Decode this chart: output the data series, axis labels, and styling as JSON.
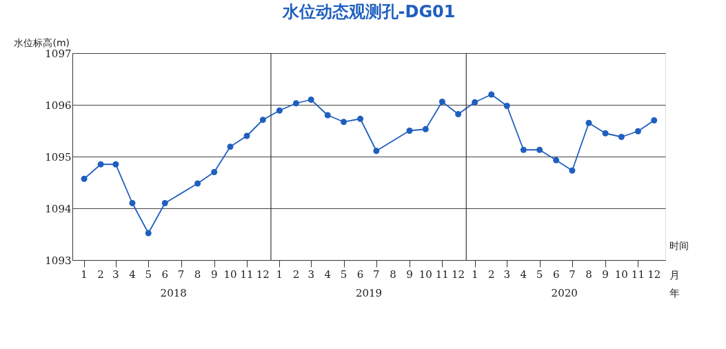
{
  "chart_data": {
    "type": "line",
    "title": "水位动态观测孔-DG01",
    "ylabel": "水位标高(m)",
    "xlabel": "时间",
    "x": [
      "2018-01",
      "2018-02",
      "2018-03",
      "2018-04",
      "2018-05",
      "2018-06",
      "2018-08",
      "2018-09",
      "2018-10",
      "2018-11",
      "2018-12",
      "2019-01",
      "2019-02",
      "2019-03",
      "2019-04",
      "2019-05",
      "2019-06",
      "2019-07",
      "2019-09",
      "2019-10",
      "2019-11",
      "2019-12",
      "2020-01",
      "2020-02",
      "2020-03",
      "2020-04",
      "2020-05",
      "2020-06",
      "2020-07",
      "2020-08",
      "2020-09",
      "2020-10",
      "2020-11",
      "2020-12"
    ],
    "series": [
      {
        "color": "#1f5fbf",
        "values": [
          1094.57,
          1094.85,
          1094.85,
          1094.1,
          1093.52,
          1094.1,
          1094.48,
          1094.7,
          1095.19,
          1095.4,
          1095.71,
          1095.89,
          1096.03,
          1096.1,
          1095.8,
          1095.67,
          1095.73,
          1095.11,
          1095.5,
          1095.53,
          1096.06,
          1095.82,
          1096.05,
          1096.2,
          1095.98,
          1095.13,
          1095.13,
          1094.93,
          1094.73,
          1095.65,
          1095.45,
          1095.38,
          1095.49,
          1095.7
        ]
      }
    ],
    "xlim": [
      "2017-12-10",
      "2020-12-22"
    ],
    "xticks": [
      {
        "value": "2018-01",
        "label": "1"
      },
      {
        "value": "2018-02",
        "label": "2"
      },
      {
        "value": "2018-03",
        "label": "3"
      },
      {
        "value": "2018-04",
        "label": "4"
      },
      {
        "value": "2018-05",
        "label": "5"
      },
      {
        "value": "2018-06",
        "label": "6"
      },
      {
        "value": "2018-07",
        "label": "7"
      },
      {
        "value": "2018-08",
        "label": "8"
      },
      {
        "value": "2018-09",
        "label": "9"
      },
      {
        "value": "2018-10",
        "label": "10"
      },
      {
        "value": "2018-11",
        "label": "11"
      },
      {
        "value": "2018-12",
        "label": "12"
      },
      {
        "value": "2019-01",
        "label": "1"
      },
      {
        "value": "2019-02",
        "label": "2"
      },
      {
        "value": "2019-03",
        "label": "3"
      },
      {
        "value": "2019-04",
        "label": "4"
      },
      {
        "value": "2019-05",
        "label": "5"
      },
      {
        "value": "2019-06",
        "label": "6"
      },
      {
        "value": "2019-07",
        "label": "7"
      },
      {
        "value": "2019-08",
        "label": "8"
      },
      {
        "value": "2019-09",
        "label": "9"
      },
      {
        "value": "2019-10",
        "label": "10"
      },
      {
        "value": "2019-11",
        "label": "11"
      },
      {
        "value": "2019-12",
        "label": "12"
      },
      {
        "value": "2020-01",
        "label": "1"
      },
      {
        "value": "2020-02",
        "label": "2"
      },
      {
        "value": "2020-03",
        "label": "3"
      },
      {
        "value": "2020-04",
        "label": "4"
      },
      {
        "value": "2020-05",
        "label": "5"
      },
      {
        "value": "2020-06",
        "label": "6"
      },
      {
        "value": "2020-07",
        "label": "7"
      },
      {
        "value": "2020-08",
        "label": "8"
      },
      {
        "value": "2020-09",
        "label": "9"
      },
      {
        "value": "2020-10",
        "label": "10"
      },
      {
        "value": "2020-11",
        "label": "11"
      },
      {
        "value": "2020-12",
        "label": "12"
      }
    ],
    "ylim": [
      1093,
      1097
    ],
    "yticks": [
      1093,
      1094,
      1095,
      1096,
      1097
    ],
    "grid": "y",
    "marker": "circle",
    "line_style": "solid",
    "ref_lines": [
      {
        "axis": "x",
        "value": "2018-12-16",
        "color": "#333333"
      },
      {
        "axis": "x",
        "value": "2019-12-16",
        "color": "#333333"
      }
    ],
    "annotations": [
      "2018",
      "2019",
      "2020",
      "月",
      "年"
    ]
  }
}
